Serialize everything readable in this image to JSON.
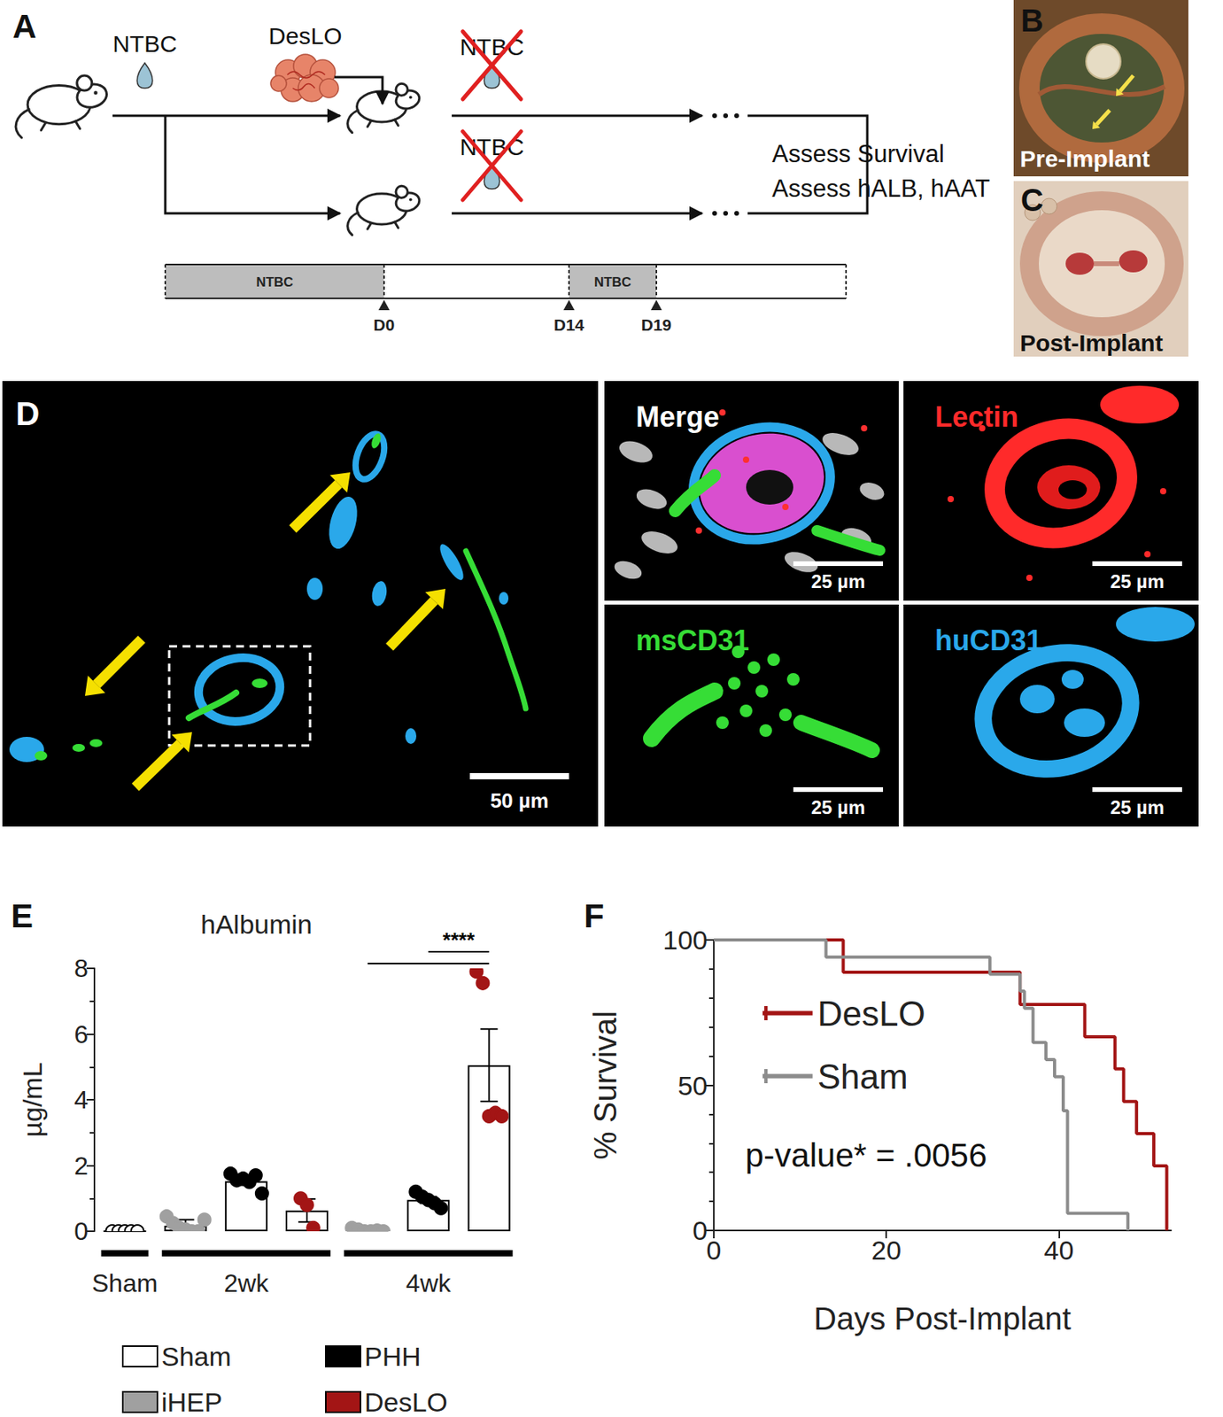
{
  "figure": {
    "A": {
      "label": "A",
      "drug": "NTBC",
      "implant": "DesLO",
      "readouts": [
        "Assess Survival",
        "Assess hALB, hAAT"
      ],
      "timeline": {
        "segments": [
          "NTBC",
          "NTBC"
        ],
        "days": [
          "D0",
          "D14",
          "D19"
        ]
      }
    },
    "B": {
      "label": "B",
      "caption": "Pre-Implant"
    },
    "C": {
      "label": "C",
      "caption": "Post-Implant"
    },
    "D": {
      "label": "D",
      "scale_bar": "50 µm",
      "insets": [
        {
          "title": "Merge",
          "color": "#ffffff",
          "scale_bar": "25 µm"
        },
        {
          "title": "Lectin",
          "color": "#ff2a2a",
          "scale_bar": "25 µm"
        },
        {
          "title": "msCD31",
          "color": "#36dd36",
          "scale_bar": "25 µm"
        },
        {
          "title": "huCD31",
          "color": "#2aa8ea",
          "scale_bar": "25 µm"
        }
      ]
    }
  },
  "chart_data": [
    {
      "panel": "E",
      "type": "bar",
      "title": "hAlbumin",
      "y_label": "µg/mL",
      "categories": [
        null,
        null,
        null,
        null,
        null,
        null,
        null
      ],
      "groups": [
        {
          "label": "Sham",
          "from": 0,
          "to": 0
        },
        {
          "label": "2wk",
          "from": 1,
          "to": 3
        },
        {
          "label": "4wk",
          "from": 4,
          "to": 6
        }
      ],
      "series": [
        {
          "name": "Sham",
          "color": "#ffffff",
          "values": [
            0,
            null,
            null,
            null,
            null,
            null,
            null
          ],
          "points": [
            [
              0,
              0,
              0,
              0,
              0
            ],
            null,
            null,
            null,
            null,
            null,
            null
          ]
        },
        {
          "name": "iHEP",
          "color": "#a0a0a0",
          "values": [
            null,
            0.17,
            null,
            null,
            0.03,
            null,
            null
          ],
          "errors": [
            null,
            0.18,
            null,
            null,
            0.02,
            null,
            null
          ],
          "points": [
            null,
            [
              0.45,
              0.25,
              0.1,
              0.05,
              0,
              0,
              0.35
            ],
            null,
            null,
            [
              0.1,
              0.05,
              0,
              0,
              0.02,
              0
            ],
            null,
            null
          ]
        },
        {
          "name": "PHH",
          "color": "#000000",
          "values": [
            null,
            null,
            1.52,
            null,
            null,
            0.95,
            null
          ],
          "errors": [
            null,
            null,
            0.12,
            null,
            null,
            0.1,
            null
          ],
          "points": [
            null,
            null,
            [
              1.75,
              1.55,
              1.6,
              1.5,
              1.7,
              1.15
            ],
            null,
            null,
            [
              1.2,
              1.05,
              0.95,
              0.85,
              0.7
            ],
            null
          ]
        },
        {
          "name": "DesLO",
          "color": "#a31515",
          "values": [
            null,
            null,
            null,
            0.63,
            null,
            null,
            5.05
          ],
          "errors": [
            null,
            null,
            null,
            0.35,
            null,
            null,
            1.1
          ],
          "points": [
            null,
            null,
            null,
            [
              1.0,
              0.8,
              0.1
            ],
            null,
            null,
            [
              7.9,
              7.55,
              3.5,
              3.6,
              3.5
            ]
          ]
        }
      ],
      "ylim": [
        0,
        8
      ],
      "yticks": [
        0,
        2,
        4,
        6,
        8
      ],
      "tick_labels": "y",
      "legend": "bottom",
      "brackets": [
        {
          "from": 4,
          "to": 6
        },
        {
          "from": 5,
          "to": 6,
          "label": "****"
        }
      ]
    },
    {
      "panel": "F",
      "type": "line",
      "x_label": "Days Post-Implant",
      "y_label": "% Survival",
      "series": [
        {
          "name": "DesLO",
          "color": "#a31515",
          "line_style": "step",
          "x": [
            0,
            15,
            35.5,
            43,
            46.5,
            47.5,
            49,
            51,
            52.5
          ],
          "values": [
            100,
            88.9,
            77.8,
            66.7,
            55.6,
            44.4,
            33.3,
            22.2,
            0
          ]
        },
        {
          "name": "Sham",
          "color": "#8c8c8c",
          "line_style": "step",
          "x": [
            0,
            13,
            32,
            35.5,
            36,
            37,
            38.5,
            39.5,
            40.5,
            41,
            48
          ],
          "values": [
            100,
            94.1,
            88.2,
            82.4,
            76.5,
            64.7,
            58.8,
            52.9,
            41.2,
            5.9,
            0
          ]
        }
      ],
      "xlim": [
        0,
        53
      ],
      "xticks": [
        0,
        20,
        40
      ],
      "ylim": [
        0,
        100
      ],
      "yticks": [
        0,
        50,
        100
      ],
      "legend": "upper left",
      "annotation": "p-value* = .0056"
    }
  ]
}
